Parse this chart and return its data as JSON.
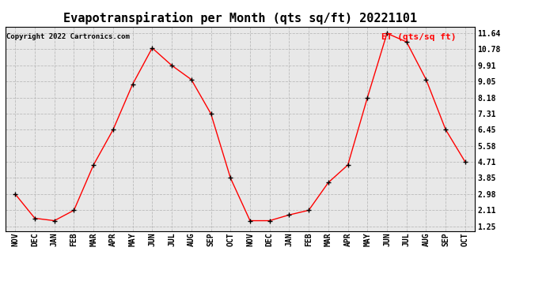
{
  "title": "Evapotranspiration per Month (qts sq/ft) 20221101",
  "copyright": "Copyright 2022 Cartronics.com",
  "legend_label": "ET (qts/sq ft)",
  "months": [
    "NOV",
    "DEC",
    "JAN",
    "FEB",
    "MAR",
    "APR",
    "MAY",
    "JUN",
    "JUL",
    "AUG",
    "SEP",
    "OCT",
    "NOV",
    "DEC",
    "JAN",
    "FEB",
    "MAR",
    "APR",
    "MAY",
    "JUN",
    "JUL",
    "AUG",
    "SEP",
    "OCT"
  ],
  "values": [
    2.98,
    1.68,
    1.55,
    2.11,
    4.55,
    6.45,
    8.9,
    10.85,
    9.91,
    9.15,
    7.31,
    3.85,
    1.55,
    1.55,
    1.86,
    2.11,
    3.6,
    4.55,
    8.18,
    11.64,
    11.18,
    9.15,
    6.45,
    4.71
  ],
  "yticks": [
    1.25,
    2.11,
    2.98,
    3.85,
    4.71,
    5.58,
    6.45,
    7.31,
    8.18,
    9.05,
    9.91,
    10.78,
    11.64
  ],
  "line_color": "red",
  "marker": "+",
  "marker_color": "black",
  "grid_color": "#bbbbbb",
  "bg_color": "#e8e8e8",
  "title_fontsize": 11,
  "tick_fontsize": 7,
  "copyright_fontsize": 6.5,
  "legend_fontsize": 8,
  "ylabel_color": "red",
  "ylim_min": 1.0,
  "ylim_max": 12.0
}
